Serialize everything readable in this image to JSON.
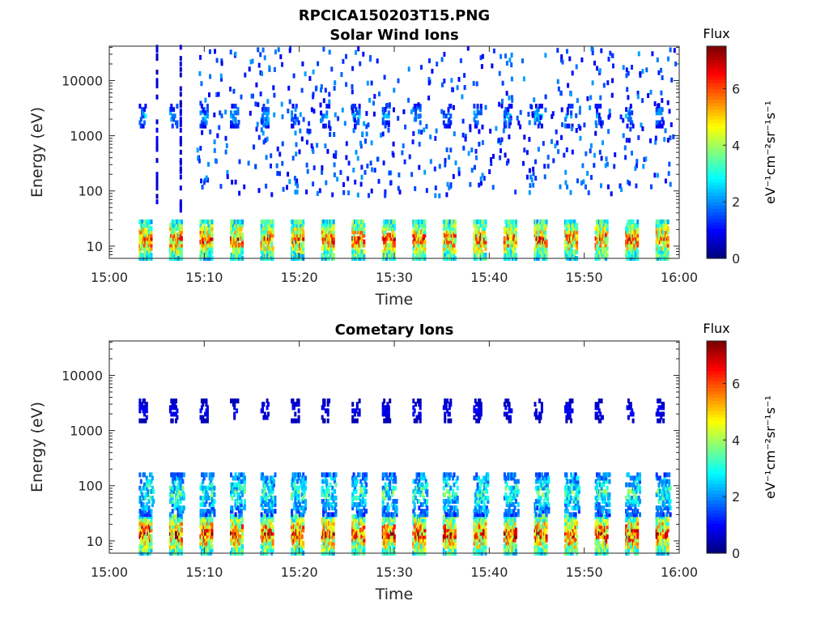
{
  "figure_title": "RPCICA150203T15.PNG",
  "colors": {
    "background": "#ffffff",
    "axes": "#262626",
    "colormap": "jet"
  },
  "chart_data": [
    {
      "type": "heatmap",
      "title": "Solar Wind Ions",
      "xlabel": "Time",
      "ylabel": "Energy (eV)",
      "x_ticks": [
        "15:00",
        "15:10",
        "15:20",
        "15:30",
        "15:40",
        "15:50",
        "16:00"
      ],
      "x_range_minutes": [
        0,
        60
      ],
      "y_scale": "log",
      "y_range": [
        6,
        42000
      ],
      "y_ticks": [
        {
          "value": 10,
          "label": "10"
        },
        {
          "value": 100,
          "label": "100"
        },
        {
          "value": 1000,
          "label": "1000"
        },
        {
          "value": 10000,
          "label": "10000"
        }
      ],
      "colorbar": {
        "title": "Flux",
        "label": "eV⁻¹cm⁻²sr⁻¹s⁻¹",
        "range": [
          0,
          7.5
        ],
        "ticks": [
          "0",
          "2",
          "4",
          "6"
        ]
      },
      "sweep_start_minutes": [
        3.1,
        6.3,
        9.5,
        12.7,
        15.9,
        19.1,
        22.3,
        25.5,
        28.7,
        31.9,
        35.1,
        38.3,
        41.5,
        44.7,
        47.9,
        51.1,
        54.3,
        57.5
      ],
      "low_energy_band": {
        "energy_range": [
          6,
          30
        ],
        "peak_flux": 6.5
      },
      "high_energy_band": {
        "energy_range": [
          1500,
          3500
        ],
        "peak_flux": 2.5
      },
      "sparse_counts": {
        "energy_range": [
          80,
          40000
        ],
        "flux": 1.2
      },
      "early_high_energy_columns": {
        "time_minutes": [
          4.9,
          7.4
        ],
        "energy_range": [
          40,
          40000
        ],
        "flux": 0.7
      }
    },
    {
      "type": "heatmap",
      "title": "Cometary Ions",
      "xlabel": "Time",
      "ylabel": "Energy (eV)",
      "x_ticks": [
        "15:00",
        "15:10",
        "15:20",
        "15:30",
        "15:40",
        "15:50",
        "16:00"
      ],
      "x_range_minutes": [
        0,
        60
      ],
      "y_scale": "log",
      "y_range": [
        6,
        42000
      ],
      "y_ticks": [
        {
          "value": 10,
          "label": "10"
        },
        {
          "value": 100,
          "label": "100"
        },
        {
          "value": 1000,
          "label": "1000"
        },
        {
          "value": 10000,
          "label": "10000"
        }
      ],
      "colorbar": {
        "title": "Flux",
        "label": "eV⁻¹cm⁻²sr⁻¹s⁻¹",
        "range": [
          0,
          7.5
        ],
        "ticks": [
          "0",
          "2",
          "4",
          "6"
        ]
      },
      "sweep_start_minutes": [
        3.1,
        6.3,
        9.5,
        12.7,
        15.9,
        19.1,
        22.3,
        25.5,
        28.7,
        31.9,
        35.1,
        38.3,
        41.5,
        44.7,
        47.9,
        51.1,
        54.3,
        57.5
      ],
      "low_energy_band": {
        "energy_range": [
          6,
          30
        ],
        "peak_flux": 7.0
      },
      "mid_energy_band": {
        "energy_range": [
          30,
          180
        ],
        "peak_flux": 3.5
      },
      "high_energy_band": {
        "energy_range": [
          1500,
          3500
        ],
        "peak_flux": 1.0
      }
    }
  ]
}
